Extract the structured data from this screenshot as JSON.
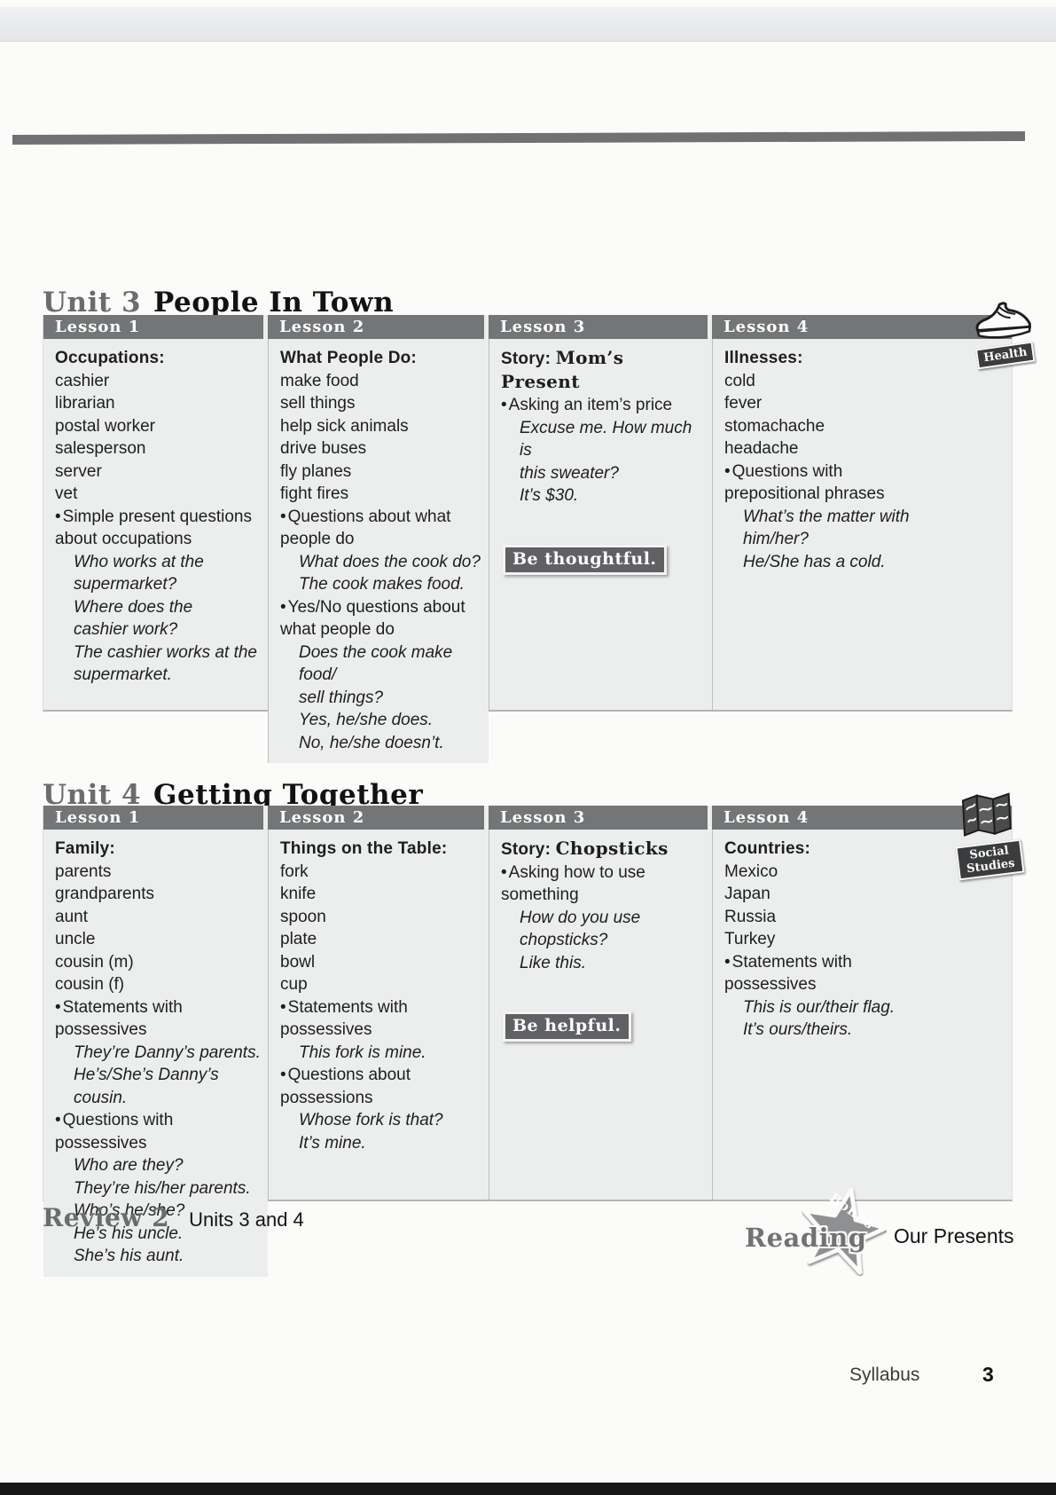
{
  "colors": {
    "header_bar": "#737577",
    "table_background": "#eceded",
    "badge_background": "#5f6164",
    "accent_gray": "#6b6c6e"
  },
  "units": [
    {
      "unit_label": "Unit 3",
      "title": "People In Town",
      "corner_badge": {
        "icon": "sneaker-icon",
        "label": "Health"
      },
      "lessons": [
        {
          "header": "Lesson 1",
          "blocks": [
            {
              "type": "heading",
              "text": "Occupations:"
            },
            {
              "type": "plain",
              "lines": [
                "cashier",
                "librarian",
                "postal worker",
                "salesperson",
                "server",
                "vet"
              ]
            },
            {
              "type": "bullet",
              "text": "Simple present questions about occupations"
            },
            {
              "type": "italic",
              "lines": [
                "Who works at the",
                "supermarket?",
                "Where does the",
                "cashier work?",
                "The cashier works at the",
                "supermarket."
              ]
            }
          ]
        },
        {
          "header": "Lesson 2",
          "blocks": [
            {
              "type": "heading",
              "text": "What People Do:"
            },
            {
              "type": "plain",
              "lines": [
                "make food",
                "sell things",
                "help sick animals",
                "drive buses",
                "fly planes",
                "fight fires"
              ]
            },
            {
              "type": "bullet",
              "text": "Questions about what people do"
            },
            {
              "type": "italic",
              "lines": [
                "What does the cook do?",
                "The cook makes food."
              ]
            },
            {
              "type": "bullet",
              "text": "Yes/No questions about what people do"
            },
            {
              "type": "italic",
              "lines": [
                "Does the cook make food/",
                "sell things?",
                "Yes, he/she does.",
                "No, he/she doesn’t."
              ]
            }
          ]
        },
        {
          "header": "Lesson 3",
          "blocks": [
            {
              "type": "story",
              "label": "Story:",
              "title": "Mom’s Present"
            },
            {
              "type": "bullet",
              "text": "Asking an item’s price"
            },
            {
              "type": "italic",
              "lines": [
                "Excuse me. How much is",
                "this sweater?",
                "It’s $30."
              ]
            },
            {
              "type": "badge",
              "text": "Be thoughtful."
            }
          ]
        },
        {
          "header": "Lesson 4",
          "blocks": [
            {
              "type": "heading",
              "text": "Illnesses:"
            },
            {
              "type": "plain",
              "lines": [
                "cold",
                "fever",
                "stomachache",
                "headache"
              ]
            },
            {
              "type": "bullet",
              "text": "Questions with prepositional phrases"
            },
            {
              "type": "italic",
              "lines": [
                "What’s the matter with",
                "him/her?",
                "He/She has a cold."
              ]
            }
          ]
        }
      ]
    },
    {
      "unit_label": "Unit 4",
      "title": "Getting Together",
      "corner_badge": {
        "icon": "folded-map-icon",
        "label": "Social Studies"
      },
      "lessons": [
        {
          "header": "Lesson 1",
          "blocks": [
            {
              "type": "heading",
              "text": "Family:"
            },
            {
              "type": "plain",
              "lines": [
                "parents",
                "grandparents",
                "aunt",
                "uncle",
                "cousin (m)",
                "cousin (f)"
              ]
            },
            {
              "type": "bullet",
              "text": "Statements with possessives"
            },
            {
              "type": "italic",
              "lines": [
                "They’re Danny’s parents.",
                "He’s/She’s Danny’s cousin."
              ]
            },
            {
              "type": "bullet",
              "text": "Questions with possessives"
            },
            {
              "type": "italic",
              "lines": [
                "Who are they?",
                "They’re his/her parents.",
                "Who’s he/she?",
                "He’s his uncle.",
                "She’s his aunt."
              ]
            }
          ]
        },
        {
          "header": "Lesson 2",
          "blocks": [
            {
              "type": "heading",
              "text": "Things on the Table:"
            },
            {
              "type": "plain",
              "lines": [
                "fork",
                "knife",
                "spoon",
                "plate",
                "bowl",
                "cup"
              ]
            },
            {
              "type": "bullet",
              "text": "Statements with possessives"
            },
            {
              "type": "italic",
              "lines": [
                "This fork is mine."
              ]
            },
            {
              "type": "bullet",
              "text": "Questions about possessions"
            },
            {
              "type": "italic",
              "lines": [
                "Whose fork is that?",
                "It’s mine."
              ]
            }
          ]
        },
        {
          "header": "Lesson 3",
          "blocks": [
            {
              "type": "story",
              "label": "Story:",
              "title": "Chopsticks"
            },
            {
              "type": "bullet",
              "text": "Asking how to use something"
            },
            {
              "type": "italic",
              "lines": [
                "How do you use",
                "chopsticks?",
                "Like this."
              ]
            },
            {
              "type": "badge",
              "text": "Be helpful."
            }
          ]
        },
        {
          "header": "Lesson 4",
          "blocks": [
            {
              "type": "heading",
              "text": "Countries:"
            },
            {
              "type": "plain",
              "lines": [
                "Mexico",
                "Japan",
                "Russia",
                "Turkey"
              ]
            },
            {
              "type": "bullet",
              "text": "Statements with possessives"
            },
            {
              "type": "italic",
              "lines": [
                "This is our/their flag.",
                "It’s ours/theirs."
              ]
            }
          ]
        }
      ]
    }
  ],
  "review": {
    "label": "Review 2",
    "text": "Units 3 and 4"
  },
  "reading_bonus": {
    "word": "Reading",
    "star_word": "Bonus",
    "title": "Our Presents"
  },
  "footer": {
    "label": "Syllabus",
    "page_number": "3"
  }
}
